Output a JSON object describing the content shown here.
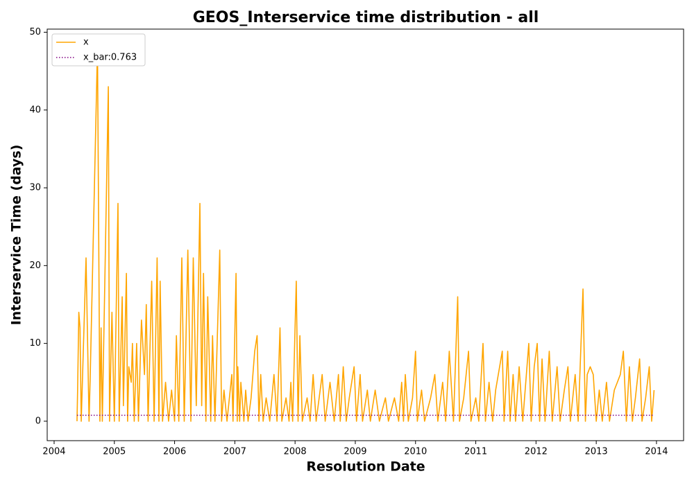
{
  "chart_data": {
    "type": "line",
    "title": "GEOS_Interservice time distribution - all",
    "xlabel": "Resolution Date",
    "ylabel": "Interservice Time (days)",
    "xlim": [
      2003.885,
      2014.45
    ],
    "ylim": [
      -2.5,
      50.4
    ],
    "xticks": [
      2004,
      2005,
      2006,
      2007,
      2008,
      2009,
      2010,
      2011,
      2012,
      2013,
      2014
    ],
    "yticks": [
      0,
      10,
      20,
      30,
      40,
      50
    ],
    "legend": "upper left",
    "series": [
      {
        "name": "x",
        "color": "#ffa500",
        "style": "solid",
        "x": [
          2004.38,
          2004.39,
          2004.41,
          2004.43,
          2004.45,
          2004.53,
          2004.58,
          2004.6,
          2004.72,
          2004.76,
          2004.78,
          2004.8,
          2004.9,
          2004.92,
          2004.96,
          2005.0,
          2005.06,
          2005.08,
          2005.13,
          2005.15,
          2005.2,
          2005.22,
          2005.24,
          2005.28,
          2005.3,
          2005.33,
          2005.37,
          2005.4,
          2005.45,
          2005.5,
          2005.53,
          2005.56,
          2005.62,
          2005.66,
          2005.71,
          2005.74,
          2005.76,
          2005.8,
          2005.85,
          2005.9,
          2005.95,
          2006.0,
          2006.03,
          2006.07,
          2006.12,
          2006.16,
          2006.22,
          2006.27,
          2006.31,
          2006.36,
          2006.42,
          2006.45,
          2006.48,
          2006.52,
          2006.55,
          2006.6,
          2006.63,
          2006.67,
          2006.75,
          2006.78,
          2006.82,
          2006.87,
          2006.95,
          2006.97,
          2007.02,
          2007.04,
          2007.05,
          2007.08,
          2007.1,
          2007.15,
          2007.18,
          2007.22,
          2007.27,
          2007.33,
          2007.37,
          2007.4,
          2007.43,
          2007.47,
          2007.52,
          2007.58,
          2007.65,
          2007.7,
          2007.75,
          2007.78,
          2007.85,
          2007.9,
          2007.93,
          2007.96,
          2008.02,
          2008.05,
          2008.08,
          2008.12,
          2008.2,
          2008.25,
          2008.3,
          2008.35,
          2008.45,
          2008.5,
          2008.58,
          2008.65,
          2008.72,
          2008.75,
          2008.8,
          2008.85,
          2008.9,
          2008.98,
          2009.02,
          2009.08,
          2009.12,
          2009.2,
          2009.25,
          2009.33,
          2009.4,
          2009.5,
          2009.55,
          2009.65,
          2009.72,
          2009.77,
          2009.8,
          2009.83,
          2009.88,
          2009.95,
          2010.0,
          2010.03,
          2010.1,
          2010.15,
          2010.25,
          2010.32,
          2010.37,
          2010.45,
          2010.5,
          2010.56,
          2010.63,
          2010.7,
          2010.73,
          2010.8,
          2010.88,
          2010.92,
          2011.0,
          2011.05,
          2011.12,
          2011.16,
          2011.22,
          2011.28,
          2011.33,
          2011.44,
          2011.47,
          2011.53,
          2011.57,
          2011.62,
          2011.66,
          2011.72,
          2011.78,
          2011.88,
          2011.92,
          2011.97,
          2012.02,
          2012.06,
          2012.1,
          2012.15,
          2012.22,
          2012.27,
          2012.35,
          2012.4,
          2012.47,
          2012.53,
          2012.57,
          2012.65,
          2012.7,
          2012.78,
          2012.82,
          2012.85,
          2012.9,
          2012.95,
          2013.0,
          2013.05,
          2013.1,
          2013.17,
          2013.22,
          2013.3,
          2013.4,
          2013.45,
          2013.5,
          2013.55,
          2013.6,
          2013.65,
          2013.72,
          2013.76,
          2013.82,
          2013.88,
          2013.92,
          2013.96
        ],
        "values": [
          0,
          4,
          14,
          12,
          0,
          21,
          0,
          6,
          48,
          0,
          12,
          0,
          43,
          0,
          14,
          0,
          28,
          0,
          16,
          2,
          19,
          0,
          7,
          5,
          10,
          0,
          10,
          0,
          13,
          6,
          15,
          0,
          18,
          0,
          21,
          0,
          18,
          0,
          5,
          0,
          4,
          0,
          11,
          0,
          21,
          0,
          22,
          0,
          21,
          2,
          28,
          2,
          19,
          0,
          16,
          0,
          11,
          0,
          22,
          0,
          4,
          0,
          6,
          0,
          19,
          0,
          7,
          0,
          5,
          0,
          4,
          0,
          3,
          9,
          11,
          0,
          6,
          0,
          3,
          0,
          6,
          0,
          12,
          0,
          3,
          0,
          5,
          0,
          18,
          0,
          11,
          0,
          3,
          0,
          6,
          0,
          6,
          0,
          5,
          0,
          6,
          0,
          7,
          0,
          3,
          7,
          0,
          6,
          0,
          4,
          0,
          4,
          0,
          3,
          0,
          3,
          0,
          5,
          0,
          6,
          0,
          3,
          9,
          0,
          4,
          0,
          3,
          6,
          0,
          5,
          0,
          9,
          0,
          16,
          0,
          3,
          9,
          0,
          3,
          0,
          10,
          0,
          5,
          0,
          4,
          9,
          0,
          9,
          0,
          6,
          0,
          7,
          0,
          10,
          0,
          7,
          10,
          0,
          8,
          0,
          9,
          0,
          7,
          0,
          4,
          7,
          0,
          6,
          0,
          17,
          0,
          6,
          7,
          6,
          0,
          4,
          0,
          5,
          0,
          4,
          6,
          9,
          0,
          7,
          0,
          3,
          8,
          0,
          3,
          7,
          0,
          4
        ]
      },
      {
        "name": "x_bar:0.763",
        "color": "#800080",
        "style": "dotted",
        "x": [
          2004.38,
          2013.96
        ],
        "values": [
          0.763,
          0.763
        ]
      }
    ]
  }
}
